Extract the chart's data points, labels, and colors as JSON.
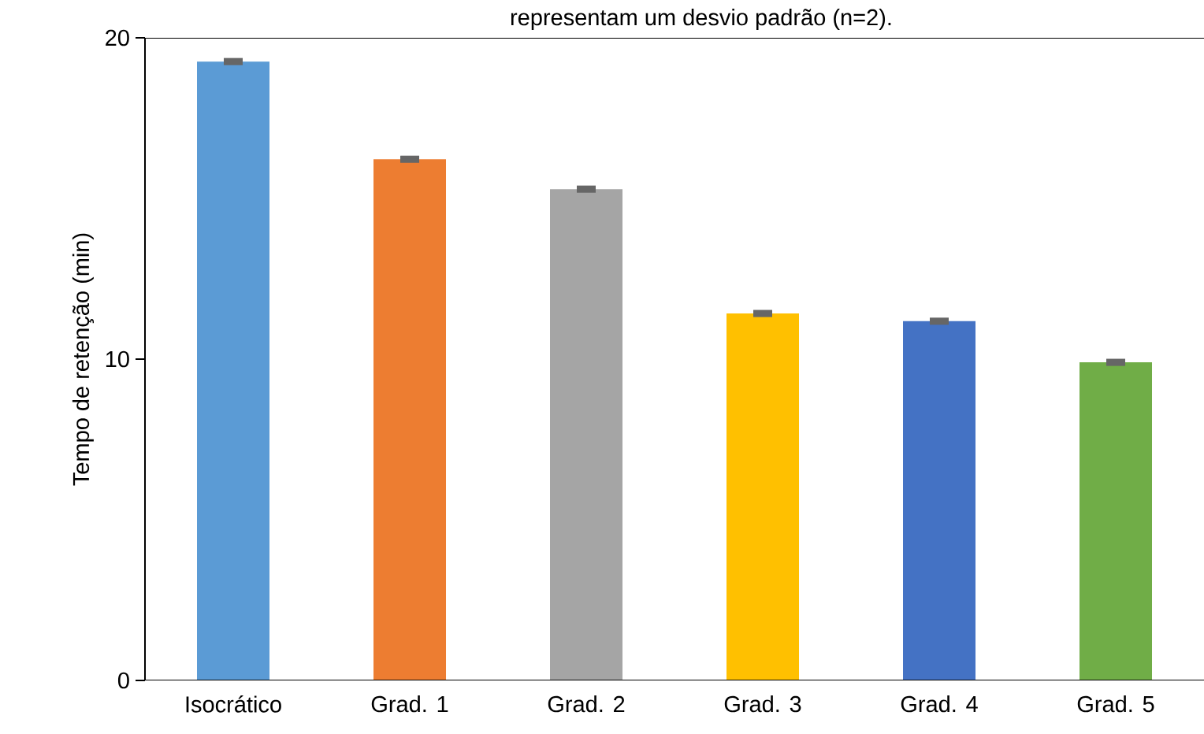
{
  "chart_data": {
    "type": "bar",
    "title": "representam um desvio padrão (n=2).",
    "ylabel": "Tempo de retenção (min)",
    "categories": [
      "Isocrático",
      "Grad. 1",
      "Grad. 2",
      "Grad. 3",
      "Grad. 4",
      "Grad. 5"
    ],
    "values": [
      19.26,
      16.22,
      15.29,
      11.42,
      11.18,
      9.9
    ],
    "errors": [
      0.05,
      0.05,
      0.05,
      0.05,
      0.05,
      0.05
    ],
    "colors": [
      "#5b9bd5",
      "#ed7d31",
      "#a5a5a5",
      "#ffc000",
      "#4472c4",
      "#70ad47"
    ],
    "ylim": [
      0,
      20
    ],
    "yticks": [
      0,
      10,
      20
    ],
    "grid": false
  }
}
